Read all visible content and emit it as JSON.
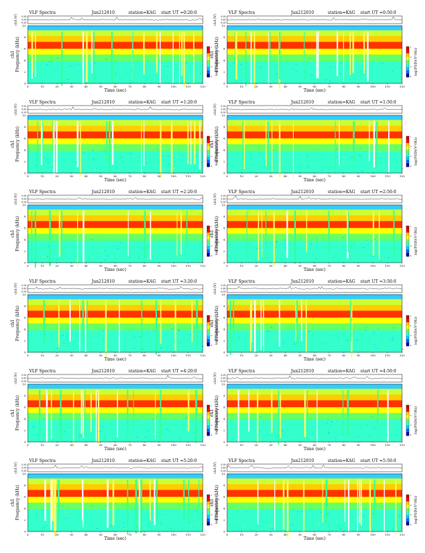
{
  "chart_data": [
    {
      "type": "heatmap",
      "header": {
        "left": "VLF Spectra",
        "date": "Jun212010",
        "station": "station=KAG",
        "start": "start  UT =0:20:0"
      },
      "voltage_label": "ch1(V)",
      "voltage_ticks": [
        "0.30",
        "0.00",
        "-0.30"
      ],
      "ylabel": "ch1\nFrequency (kHz)",
      "y_ticks": [
        "10",
        "8",
        "6",
        "4",
        "2",
        "0"
      ],
      "xlabel": "Time (sec)",
      "x_ticks": [
        "0",
        "10",
        "20",
        "30",
        "40",
        "50",
        "60",
        "70",
        "80",
        "90",
        "100",
        "110",
        "120"
      ],
      "xlim": [
        0,
        120
      ],
      "ylim": [
        0,
        10
      ],
      "colorbar_label": "log(PSD)(V²/Hz)",
      "colorbar_ticks": [
        "-1",
        "-2",
        "-3",
        "-4"
      ],
      "colorbar_colors": [
        "#cc0000",
        "#ff0000",
        "#ffcc00",
        "#ffff00",
        "#66ff66",
        "#33ffcc",
        "#00ccff",
        "#0066ff",
        "#0000aa"
      ]
    },
    {
      "type": "heatmap",
      "header": {
        "left": "VLF Spectra",
        "date": "Jun212010",
        "station": "station=KAG",
        "start": "start  UT =0:50:0"
      },
      "voltage_label": "ch1(V)",
      "voltage_ticks": [
        "0.30",
        "0.00",
        "-0.30"
      ],
      "ylabel": "ch1\nFrequency (kHz)",
      "y_ticks": [
        "10",
        "8",
        "6",
        "4",
        "2",
        "0"
      ],
      "xlabel": "Time (sec)",
      "x_ticks": [
        "0",
        "10",
        "20",
        "30",
        "40",
        "50",
        "60",
        "70",
        "80",
        "90",
        "100",
        "110",
        "120"
      ],
      "xlim": [
        0,
        120
      ],
      "ylim": [
        0,
        10
      ],
      "colorbar_label": "log(PSD)(V²/Hz)",
      "colorbar_ticks": [
        "-1",
        "-2",
        "-3",
        "-4"
      ],
      "colorbar_colors": [
        "#cc0000",
        "#ff0000",
        "#ffcc00",
        "#ffff00",
        "#66ff66",
        "#33ffcc",
        "#00ccff",
        "#0066ff",
        "#0000aa"
      ]
    },
    {
      "type": "heatmap",
      "header": {
        "left": "VLF Spectra",
        "date": "Jun212010",
        "station": "station=KAG",
        "start": "start  UT =1:20:0"
      },
      "voltage_label": "ch1(V)",
      "voltage_ticks": [
        "0.30",
        "0.00",
        "-0.30"
      ],
      "ylabel": "ch1\nFrequency (kHz)",
      "y_ticks": [
        "10",
        "8",
        "6",
        "4",
        "2",
        "0"
      ],
      "xlabel": "Time (sec)",
      "x_ticks": [
        "0",
        "10",
        "20",
        "30",
        "40",
        "50",
        "60",
        "70",
        "80",
        "90",
        "100",
        "110",
        "120"
      ],
      "xlim": [
        0,
        120
      ],
      "ylim": [
        0,
        10
      ],
      "colorbar_label": "log(PSD)(V²/Hz)",
      "colorbar_ticks": [
        "-1",
        "-2",
        "-3",
        "-4"
      ],
      "colorbar_colors": [
        "#cc0000",
        "#ff0000",
        "#ffcc00",
        "#ffff00",
        "#66ff66",
        "#33ffcc",
        "#00ccff",
        "#0066ff",
        "#0000aa"
      ]
    },
    {
      "type": "heatmap",
      "header": {
        "left": "VLF Spectra",
        "date": "Jun212010",
        "station": "station=KAG",
        "start": "start  UT =1:50:0"
      },
      "voltage_label": "ch1(V)",
      "voltage_ticks": [
        "0.30",
        "0.00",
        "-0.30"
      ],
      "ylabel": "ch1\nFrequency (kHz)",
      "y_ticks": [
        "10",
        "8",
        "6",
        "4",
        "2",
        "0"
      ],
      "xlabel": "Time (sec)",
      "x_ticks": [
        "0",
        "10",
        "20",
        "30",
        "40",
        "50",
        "60",
        "70",
        "80",
        "90",
        "100",
        "110",
        "120"
      ],
      "xlim": [
        0,
        120
      ],
      "ylim": [
        0,
        10
      ],
      "colorbar_label": "log(PSD)(V²/Hz)",
      "colorbar_ticks": [
        "-1",
        "-2",
        "-3",
        "-4"
      ],
      "colorbar_colors": [
        "#cc0000",
        "#ff0000",
        "#ffcc00",
        "#ffff00",
        "#66ff66",
        "#33ffcc",
        "#00ccff",
        "#0066ff",
        "#0000aa"
      ]
    },
    {
      "type": "heatmap",
      "header": {
        "left": "VLF Spectra",
        "date": "Jun212010",
        "station": "station=KAG",
        "start": "start  UT =2:20:0"
      },
      "voltage_label": "ch1(V)",
      "voltage_ticks": [
        "0.30",
        "0.00",
        "-0.30"
      ],
      "ylabel": "ch1\nFrequency (kHz)",
      "y_ticks": [
        "10",
        "8",
        "6",
        "4",
        "2",
        "0"
      ],
      "xlabel": "Time (sec)",
      "x_ticks": [
        "0",
        "10",
        "20",
        "30",
        "40",
        "50",
        "60",
        "70",
        "80",
        "90",
        "100",
        "110",
        "120"
      ],
      "xlim": [
        0,
        120
      ],
      "ylim": [
        0,
        10
      ],
      "colorbar_label": "log(PSD)(V²/Hz)",
      "colorbar_ticks": [
        "-1",
        "-2",
        "-3",
        "-4"
      ],
      "colorbar_colors": [
        "#cc0000",
        "#ff0000",
        "#ffcc00",
        "#ffff00",
        "#66ff66",
        "#33ffcc",
        "#00ccff",
        "#0066ff",
        "#0000aa"
      ]
    },
    {
      "type": "heatmap",
      "header": {
        "left": "VLF Spectra",
        "date": "Jun212010",
        "station": "station=KAG",
        "start": "start  UT =2:50:0"
      },
      "voltage_label": "ch1(V)",
      "voltage_ticks": [
        "0.30",
        "0.00",
        "-0.30"
      ],
      "ylabel": "ch1\nFrequency (kHz)",
      "y_ticks": [
        "10",
        "8",
        "6",
        "4",
        "2",
        "0"
      ],
      "xlabel": "Time (sec)",
      "x_ticks": [
        "0",
        "10",
        "20",
        "30",
        "40",
        "50",
        "60",
        "70",
        "80",
        "90",
        "100",
        "110",
        "120"
      ],
      "xlim": [
        0,
        120
      ],
      "ylim": [
        0,
        10
      ],
      "colorbar_label": "log(PSD)(V²/Hz)",
      "colorbar_ticks": [
        "-1",
        "-2",
        "-3",
        "-4"
      ],
      "colorbar_colors": [
        "#cc0000",
        "#ff0000",
        "#ffcc00",
        "#ffff00",
        "#66ff66",
        "#33ffcc",
        "#00ccff",
        "#0066ff",
        "#0000aa"
      ]
    },
    {
      "type": "heatmap",
      "header": {
        "left": "VLF Spectra",
        "date": "Jun212010",
        "station": "station=KAG",
        "start": "start  UT =3:20:0"
      },
      "voltage_label": "ch1(V)",
      "voltage_ticks": [
        "0.30",
        "0.00",
        "-0.30"
      ],
      "ylabel": "ch1\nFrequency (kHz)",
      "y_ticks": [
        "10",
        "8",
        "6",
        "4",
        "2",
        "0"
      ],
      "xlabel": "Time (sec)",
      "x_ticks": [
        "0",
        "10",
        "20",
        "30",
        "40",
        "50",
        "60",
        "70",
        "80",
        "90",
        "100",
        "110",
        "120"
      ],
      "xlim": [
        0,
        120
      ],
      "ylim": [
        0,
        10
      ],
      "colorbar_label": "log(PSD)(V²/Hz)",
      "colorbar_ticks": [
        "-1",
        "-2",
        "-3",
        "-4"
      ],
      "colorbar_colors": [
        "#cc0000",
        "#ff0000",
        "#ffcc00",
        "#ffff00",
        "#66ff66",
        "#33ffcc",
        "#00ccff",
        "#0066ff",
        "#0000aa"
      ]
    },
    {
      "type": "heatmap",
      "header": {
        "left": "VLF Spectra",
        "date": "Jun212010",
        "station": "station=KAG",
        "start": "start  UT =3:50:0"
      },
      "voltage_label": "ch1(V)",
      "voltage_ticks": [
        "0.30",
        "0.00",
        "-0.30"
      ],
      "ylabel": "ch1\nFrequency (kHz)",
      "y_ticks": [
        "10",
        "8",
        "6",
        "4",
        "2",
        "0"
      ],
      "xlabel": "Time (sec)",
      "x_ticks": [
        "0",
        "10",
        "20",
        "30",
        "40",
        "50",
        "60",
        "70",
        "80",
        "90",
        "100",
        "110",
        "120"
      ],
      "xlim": [
        0,
        120
      ],
      "ylim": [
        0,
        10
      ],
      "colorbar_label": "log(PSD)(V²/Hz)",
      "colorbar_ticks": [
        "-1",
        "-2",
        "-3",
        "-4"
      ],
      "colorbar_colors": [
        "#cc0000",
        "#ff0000",
        "#ffcc00",
        "#ffff00",
        "#66ff66",
        "#33ffcc",
        "#00ccff",
        "#0066ff",
        "#0000aa"
      ]
    },
    {
      "type": "heatmap",
      "header": {
        "left": "VLF Spectra",
        "date": "Jun212010",
        "station": "station=KAG",
        "start": "start  UT =4:20:0"
      },
      "voltage_label": "ch1(V)",
      "voltage_ticks": [
        "0.30",
        "0.00",
        "-0.30"
      ],
      "ylabel": "ch1\nFrequency (kHz)",
      "y_ticks": [
        "10",
        "8",
        "6",
        "4",
        "2",
        "0"
      ],
      "xlabel": "Time (sec)",
      "x_ticks": [
        "0",
        "10",
        "20",
        "30",
        "40",
        "50",
        "60",
        "70",
        "80",
        "90",
        "100",
        "110",
        "120"
      ],
      "xlim": [
        0,
        120
      ],
      "ylim": [
        0,
        10
      ],
      "colorbar_label": "log(PSD)(V²/Hz)",
      "colorbar_ticks": [
        "-1",
        "-2",
        "-3",
        "-4"
      ],
      "colorbar_colors": [
        "#cc0000",
        "#ff0000",
        "#ffcc00",
        "#ffff00",
        "#66ff66",
        "#33ffcc",
        "#00ccff",
        "#0066ff",
        "#0000aa"
      ]
    },
    {
      "type": "heatmap",
      "header": {
        "left": "VLF Spectra",
        "date": "Jun212010",
        "station": "station=KAG",
        "start": "start  UT =4:50:0"
      },
      "voltage_label": "ch1(V)",
      "voltage_ticks": [
        "0.30",
        "0.00",
        "-0.30"
      ],
      "ylabel": "ch1\nFrequency (kHz)",
      "y_ticks": [
        "10",
        "8",
        "6",
        "4",
        "2",
        "0"
      ],
      "xlabel": "Time (sec)",
      "x_ticks": [
        "0",
        "10",
        "20",
        "30",
        "40",
        "50",
        "60",
        "70",
        "80",
        "90",
        "100",
        "110",
        "120"
      ],
      "xlim": [
        0,
        120
      ],
      "ylim": [
        0,
        10
      ],
      "colorbar_label": "log(PSD)(V²/Hz)",
      "colorbar_ticks": [
        "-1",
        "-2",
        "-3",
        "-4"
      ],
      "colorbar_colors": [
        "#cc0000",
        "#ff0000",
        "#ffcc00",
        "#ffff00",
        "#66ff66",
        "#33ffcc",
        "#00ccff",
        "#0066ff",
        "#0000aa"
      ]
    },
    {
      "type": "heatmap",
      "header": {
        "left": "VLF Spectra",
        "date": "Jun212010",
        "station": "station=KAG",
        "start": "start  UT =5:20:0"
      },
      "voltage_label": "ch1(V)",
      "voltage_ticks": [
        "0.30",
        "0.00",
        "-0.30"
      ],
      "ylabel": "ch1\nFrequency (kHz)",
      "y_ticks": [
        "10",
        "8",
        "6",
        "4",
        "2",
        "0"
      ],
      "xlabel": "Time (sec)",
      "x_ticks": [
        "0",
        "10",
        "20",
        "30",
        "40",
        "50",
        "60",
        "70",
        "80",
        "90",
        "100",
        "110",
        "120"
      ],
      "xlim": [
        0,
        120
      ],
      "ylim": [
        0,
        10
      ],
      "colorbar_label": "log(PSD)(V²/Hz)",
      "colorbar_ticks": [
        "-1",
        "-2",
        "-3",
        "-4"
      ],
      "colorbar_colors": [
        "#cc0000",
        "#ff0000",
        "#ffcc00",
        "#ffff00",
        "#66ff66",
        "#33ffcc",
        "#00ccff",
        "#0066ff",
        "#0000aa"
      ]
    },
    {
      "type": "heatmap",
      "header": {
        "left": "VLF Spectra",
        "date": "Jun212010",
        "station": "station=KAG",
        "start": "start  UT =5:50:0"
      },
      "voltage_label": "ch1(V)",
      "voltage_ticks": [
        "0.30",
        "0.00",
        "-0.30"
      ],
      "ylabel": "ch1\nFrequency (kHz)",
      "y_ticks": [
        "10",
        "8",
        "6",
        "4",
        "2",
        "0"
      ],
      "xlabel": "Time (sec)",
      "x_ticks": [
        "0",
        "10",
        "20",
        "30",
        "40",
        "50",
        "60",
        "70",
        "80",
        "90",
        "100",
        "110",
        "120"
      ],
      "xlim": [
        0,
        120
      ],
      "ylim": [
        0,
        10
      ],
      "colorbar_label": "log(PSD)(V²/Hz)",
      "colorbar_ticks": [
        "-1",
        "-2",
        "-3",
        "-4"
      ],
      "colorbar_colors": [
        "#cc0000",
        "#ff0000",
        "#ffcc00",
        "#ffff00",
        "#66ff66",
        "#33ffcc",
        "#00ccff",
        "#0066ff",
        "#0000aa"
      ]
    }
  ]
}
